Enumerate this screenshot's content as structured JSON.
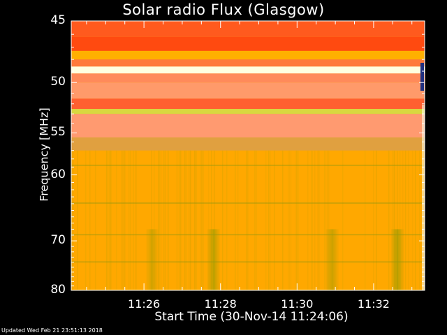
{
  "chart_data": {
    "type": "heatmap",
    "title": "Solar radio Flux (Glasgow)",
    "xlabel": "Start Time (30-Nov-14 11:24:06)",
    "ylabel": "Frequency [MHz]",
    "x_ticks": [
      "11:26",
      "11:28",
      "11:30",
      "11:32"
    ],
    "x_tick_minutes": [
      26,
      28,
      30,
      32
    ],
    "x_range": [
      "11:24:06",
      "11:33:20"
    ],
    "y_ticks": [
      45,
      50,
      55,
      60,
      70,
      80
    ],
    "y_range": [
      45,
      80
    ],
    "y_scale": "reciprocal",
    "bands": [
      {
        "f_from": 45,
        "f_to": 46.2,
        "color": "#ff5a1e"
      },
      {
        "f_from": 46.2,
        "f_to": 47.3,
        "color": "#ff4a10"
      },
      {
        "f_from": 47.3,
        "f_to": 48.0,
        "color": "#ffb000"
      },
      {
        "f_from": 48.0,
        "f_to": 48.6,
        "color": "#ff7a3a"
      },
      {
        "f_from": 48.6,
        "f_to": 49.2,
        "color": "#ffffe0"
      },
      {
        "f_from": 49.2,
        "f_to": 50.0,
        "color": "#ff8a5a"
      },
      {
        "f_from": 50.0,
        "f_to": 51.5,
        "color": "#ff9a6a"
      },
      {
        "f_from": 51.5,
        "f_to": 52.5,
        "color": "#ff6030"
      },
      {
        "f_from": 52.5,
        "f_to": 53.0,
        "color": "#d8d840"
      },
      {
        "f_from": 53.0,
        "f_to": 55.5,
        "color": "#ff9a70"
      },
      {
        "f_from": 55.5,
        "f_to": 57.0,
        "color": "#e0a040"
      },
      {
        "f_from": 57.0,
        "f_to": 80.0,
        "color": "#ffa800"
      }
    ],
    "grid": false,
    "legend": "none"
  },
  "footer": "Updated Wed Feb 21 23:51:13 2018"
}
